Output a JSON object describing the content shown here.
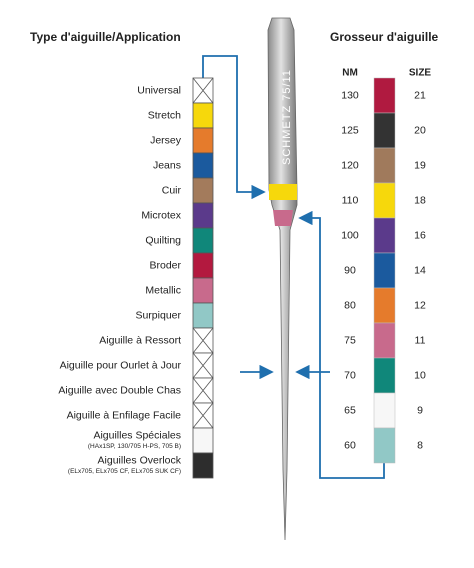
{
  "left": {
    "title": "Type d'aiguille/Application",
    "types": [
      {
        "label": "Universal",
        "color": "#ffffff",
        "crossed": true
      },
      {
        "label": "Stretch",
        "color": "#f6d80c"
      },
      {
        "label": "Jersey",
        "color": "#e57b2c"
      },
      {
        "label": "Jeans",
        "color": "#1b5a9e"
      },
      {
        "label": "Cuir",
        "color": "#a37b5c"
      },
      {
        "label": "Microtex",
        "color": "#5b3a8b"
      },
      {
        "label": "Quilting",
        "color": "#10877a"
      },
      {
        "label": "Broder",
        "color": "#b3193f"
      },
      {
        "label": "Metallic",
        "color": "#c86a8c"
      },
      {
        "label": "Surpiquer",
        "color": "#91c8c6"
      },
      {
        "label": "Aiguille à Ressort",
        "color": "#ffffff",
        "crossed": true
      },
      {
        "label": "Aiguille pour Ourlet à Jour",
        "color": "#ffffff",
        "crossed": true
      },
      {
        "label": "Aiguille avec Double Chas",
        "color": "#ffffff",
        "crossed": true
      },
      {
        "label": "Aiguille à Enfilage Facile",
        "color": "#ffffff",
        "crossed": true
      },
      {
        "label": "Aiguilles Spéciales",
        "note": "(HAx1SP, 130/705 H-PS, 705 B)",
        "color": "#f7f7f7"
      },
      {
        "label": "Aiguilles Overlock",
        "note": "(ELx705, ELx705 CF, ELx705 SUK CF)",
        "color": "#2d2d2d"
      }
    ]
  },
  "needle": {
    "label": "SCHMETZ 75/11"
  },
  "right": {
    "title": "Grosseur d'aiguille",
    "nm_header": "NM",
    "size_header": "SIZE",
    "sizes": [
      {
        "nm": "130",
        "size": "21",
        "color": "#b01a40"
      },
      {
        "nm": "125",
        "size": "20",
        "color": "#333333"
      },
      {
        "nm": "120",
        "size": "19",
        "color": "#a07a5c"
      },
      {
        "nm": "110",
        "size": "18",
        "color": "#f6d80c"
      },
      {
        "nm": "100",
        "size": "16",
        "color": "#5b3a8b"
      },
      {
        "nm": "90",
        "size": "14",
        "color": "#1b5a9e"
      },
      {
        "nm": "80",
        "size": "12",
        "color": "#e57b2c"
      },
      {
        "nm": "75",
        "size": "11",
        "color": "#c86a8c"
      },
      {
        "nm": "70",
        "size": "10",
        "color": "#10877a"
      },
      {
        "nm": "65",
        "size": "9",
        "color": "#f7f7f7"
      },
      {
        "nm": "60",
        "size": "8",
        "color": "#91c8c6"
      }
    ]
  }
}
